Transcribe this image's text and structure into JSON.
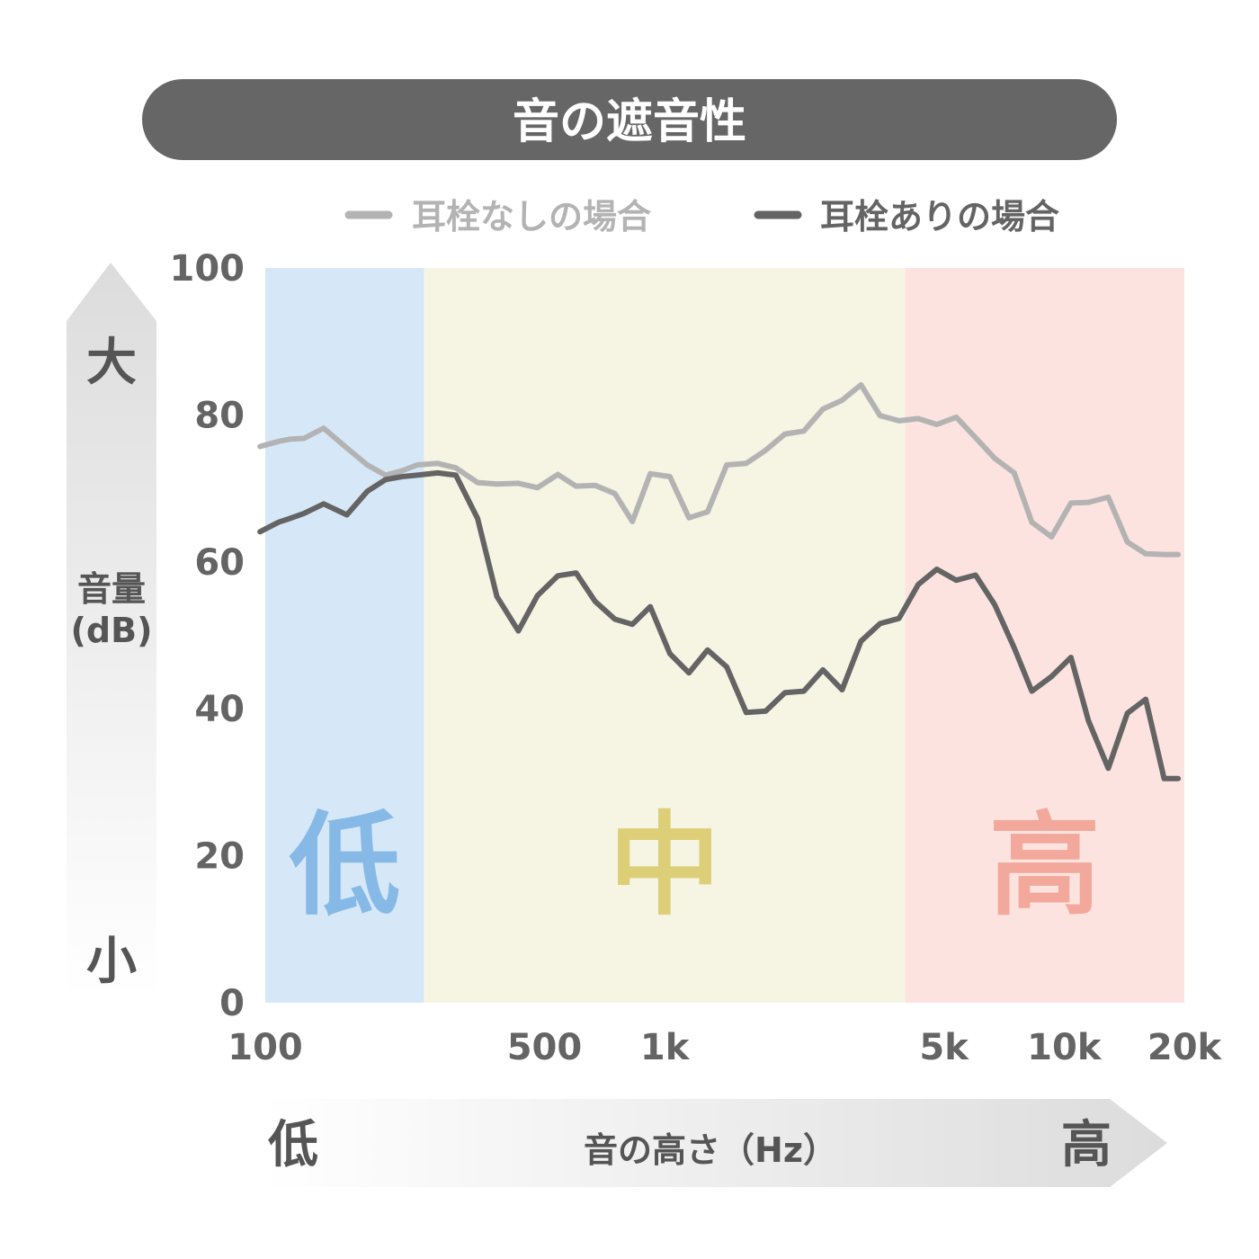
{
  "chart_data": {
    "type": "line",
    "title": "音の遮音性",
    "xlabel": "音の高さ（Hz）",
    "ylabel": "音量\n(dB)",
    "x_scale": "log",
    "xlim": [
      100,
      20000
    ],
    "ylim": [
      0,
      100
    ],
    "grid": false,
    "legend_position": "top-right",
    "x_ticks": [
      {
        "value": 100,
        "label": "100"
      },
      {
        "value": 500,
        "label": "500"
      },
      {
        "value": 1000,
        "label": "1k"
      },
      {
        "value": 5000,
        "label": "5k"
      },
      {
        "value": 10000,
        "label": "10k"
      },
      {
        "value": 20000,
        "label": "20k"
      }
    ],
    "y_ticks": [
      {
        "value": 0,
        "label": "0"
      },
      {
        "value": 20,
        "label": "20"
      },
      {
        "value": 40,
        "label": "40"
      },
      {
        "value": 60,
        "label": "60"
      },
      {
        "value": 80,
        "label": "80"
      },
      {
        "value": 100,
        "label": "100"
      }
    ],
    "y_axis_low_label": "小",
    "y_axis_high_label": "大",
    "x_axis_low_label": "低",
    "x_axis_high_label": "高",
    "bands": [
      {
        "label": "低",
        "x_start": 100,
        "x_end": 250,
        "color": "#d6e8f8",
        "label_color": "#86b9e6"
      },
      {
        "label": "中",
        "x_start": 250,
        "x_end": 4000,
        "color": "#f6f5e4",
        "label_color": "#ddcf78"
      },
      {
        "label": "高",
        "x_start": 4000,
        "x_end": 20000,
        "color": "#fde3e0",
        "label_color": "#f2a89a"
      }
    ],
    "series": [
      {
        "name": "耳栓なしの場合",
        "color": "#b3b3b3",
        "x": [
          97,
          108,
          115,
          125,
          140,
          160,
          180,
          200,
          220,
          240,
          270,
          300,
          340,
          380,
          430,
          480,
          540,
          600,
          670,
          750,
          830,
          920,
          1030,
          1150,
          1280,
          1430,
          1600,
          1790,
          2000,
          2230,
          2490,
          2780,
          3100,
          3460,
          3860,
          4310,
          4800,
          5370,
          6000,
          6700,
          7500,
          8300,
          9300,
          10400,
          11500,
          12900,
          14400,
          16000,
          17800,
          19300
        ],
        "values": [
          75.7,
          76.4,
          76.7,
          76.8,
          78.2,
          75.5,
          73.2,
          71.8,
          72.4,
          73.2,
          73.4,
          72.8,
          70.8,
          70.6,
          70.7,
          70.1,
          71.9,
          70.3,
          70.4,
          69.3,
          65.5,
          72.0,
          71.6,
          66.0,
          66.8,
          73.2,
          73.4,
          75.2,
          77.4,
          77.8,
          80.8,
          82.0,
          84.1,
          79.9,
          79.2,
          79.5,
          78.7,
          79.7,
          76.9,
          74.1,
          72.1,
          65.4,
          63.4,
          68.0,
          68.1,
          68.8,
          62.7,
          61.1,
          61.0,
          61.0
        ]
      },
      {
        "name": "耳栓ありの場合",
        "color": "#646464",
        "x": [
          97,
          108,
          115,
          125,
          140,
          160,
          180,
          200,
          220,
          240,
          270,
          300,
          340,
          380,
          430,
          480,
          540,
          600,
          670,
          750,
          830,
          920,
          1030,
          1150,
          1280,
          1430,
          1600,
          1790,
          2000,
          2230,
          2490,
          2780,
          3100,
          3460,
          3860,
          4310,
          4800,
          5370,
          6000,
          6700,
          7500,
          8300,
          9300,
          10400,
          11500,
          12900,
          14400,
          16000,
          17800,
          19300
        ],
        "values": [
          64.1,
          65.4,
          65.9,
          66.6,
          67.9,
          66.4,
          69.6,
          71.2,
          71.6,
          71.8,
          72.1,
          71.8,
          65.9,
          55.3,
          50.6,
          55.4,
          58.1,
          58.5,
          54.6,
          52.2,
          51.5,
          53.9,
          47.5,
          44.9,
          48.0,
          45.7,
          39.5,
          39.7,
          42.2,
          42.4,
          45.3,
          42.6,
          49.2,
          51.6,
          52.3,
          56.9,
          59.0,
          57.5,
          58.2,
          54.2,
          48.3,
          42.4,
          44.4,
          47.0,
          38.4,
          31.9,
          39.4,
          41.3,
          30.5,
          30.5
        ]
      }
    ]
  }
}
